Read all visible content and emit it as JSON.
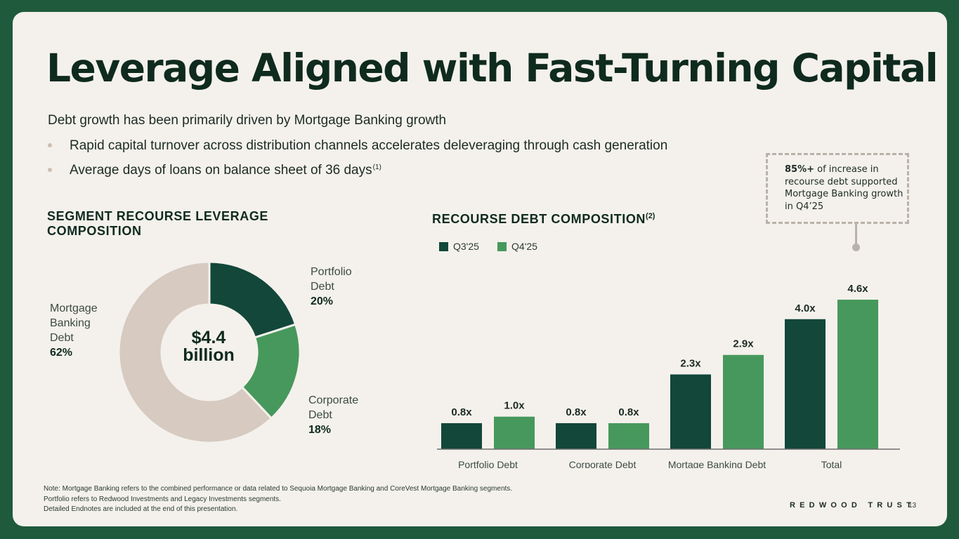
{
  "title": "Leverage Aligned with Fast-Turning Capital",
  "subtitle": "Debt growth has been primarily driven by Mortgage Banking growth",
  "bullets": [
    {
      "text": "Rapid capital turnover across distribution channels accelerates deleveraging through cash generation",
      "footnote": ""
    },
    {
      "text": "Average days of loans on balance sheet of 36 days",
      "footnote": "(1)"
    }
  ],
  "callout": {
    "bold": "85%+",
    "text": " of increase in recourse debt supported Mortgage Banking growth in Q4’25"
  },
  "left_section": {
    "title_line1": "SEGMENT RECOURSE LEVERAGE",
    "title_line2": "COMPOSITION",
    "center_line1": "$4.4",
    "center_line2": "billion"
  },
  "right_section": {
    "title": "RECOURSE DEBT COMPOSITION",
    "footnote": "(2)"
  },
  "colors": {
    "dark_green": "#12473a",
    "light_green": "#47985c",
    "beige": "#d6cac1",
    "axis": "#6f6f6f",
    "border": "#1f5a3c"
  },
  "chart_data": [
    {
      "type": "pie",
      "title": "SEGMENT RECOURSE LEVERAGE COMPOSITION",
      "center_label": "$4.4 billion",
      "slices": [
        {
          "label_lines": [
            "Portfolio",
            "Debt"
          ],
          "pct_label": "20%",
          "value": 20
        },
        {
          "label_lines": [
            "Corporate",
            "Debt"
          ],
          "pct_label": "18%",
          "value": 18
        },
        {
          "label_lines": [
            "Mortgage",
            "Banking",
            "Debt"
          ],
          "pct_label": "62%",
          "value": 62
        }
      ]
    },
    {
      "type": "bar",
      "title": "RECOURSE DEBT COMPOSITION",
      "categories": [
        "Portfolio Debt",
        "Corporate Debt",
        "Mortage Banking Debt",
        "Total"
      ],
      "series": [
        {
          "name": "Q3'25",
          "values": [
            0.8,
            0.8,
            2.3,
            4.0
          ],
          "labels": [
            "0.8x",
            "0.8x",
            "2.3x",
            "4.0x"
          ]
        },
        {
          "name": "Q4'25",
          "values": [
            1.0,
            0.8,
            2.9,
            4.6
          ],
          "labels": [
            "1.0x",
            "0.8x",
            "2.9x",
            "4.6x"
          ]
        }
      ],
      "ylim": [
        0,
        4.6
      ],
      "legend": "top-left"
    }
  ],
  "notes": [
    "Note: Mortgage Banking refers to the combined performance or data related to Sequoia Mortgage Banking and CoreVest Mortgage Banking segments.",
    "Portfolio refers to Redwood Investments and Legacy Investments segments.",
    "Detailed Endnotes are included at the end of this presentation."
  ],
  "brand": "REDWOOD TRUST",
  "page_number": "13"
}
